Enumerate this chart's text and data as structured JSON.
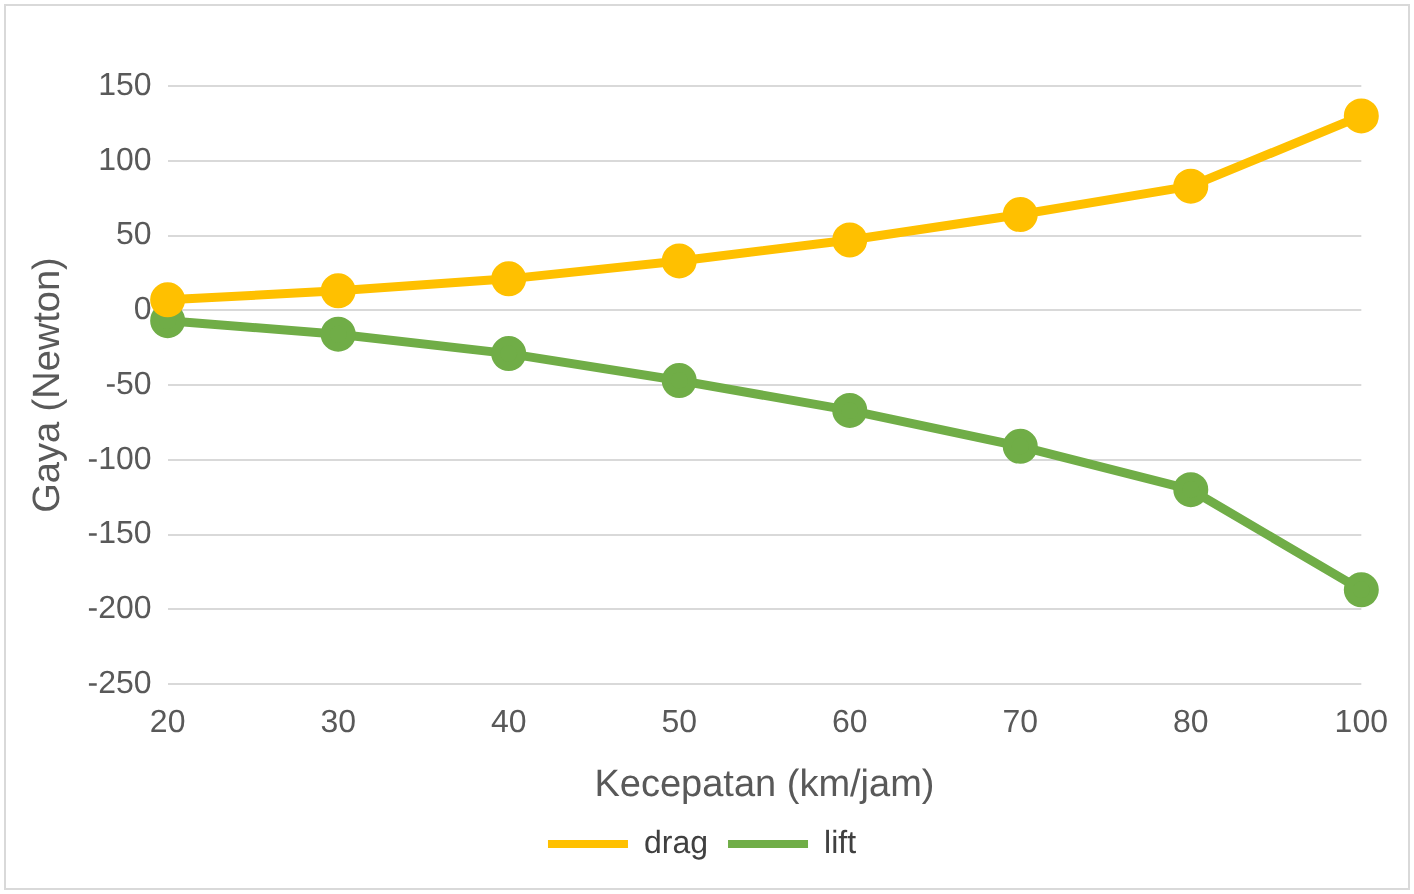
{
  "chart_data": {
    "type": "line",
    "xlabel": "Kecepatan (km/jam)",
    "ylabel": "Gaya (Newton)",
    "categories": [
      "20",
      "30",
      "40",
      "50",
      "60",
      "70",
      "80",
      "100"
    ],
    "series": [
      {
        "name": "drag",
        "color": "#ffc000",
        "values": [
          7,
          13,
          21,
          33,
          47,
          64,
          83,
          130
        ]
      },
      {
        "name": "lift",
        "color": "#70ad47",
        "values": [
          -7,
          -16,
          -29,
          -47,
          -67,
          -91,
          -120,
          -187
        ]
      }
    ],
    "ylim": [
      -250,
      150
    ],
    "yticks": [
      -250,
      -200,
      -150,
      -100,
      -50,
      0,
      50,
      100,
      150
    ],
    "grid": "y",
    "legend": "bottom",
    "marker": "circle",
    "line_style": "solid"
  }
}
